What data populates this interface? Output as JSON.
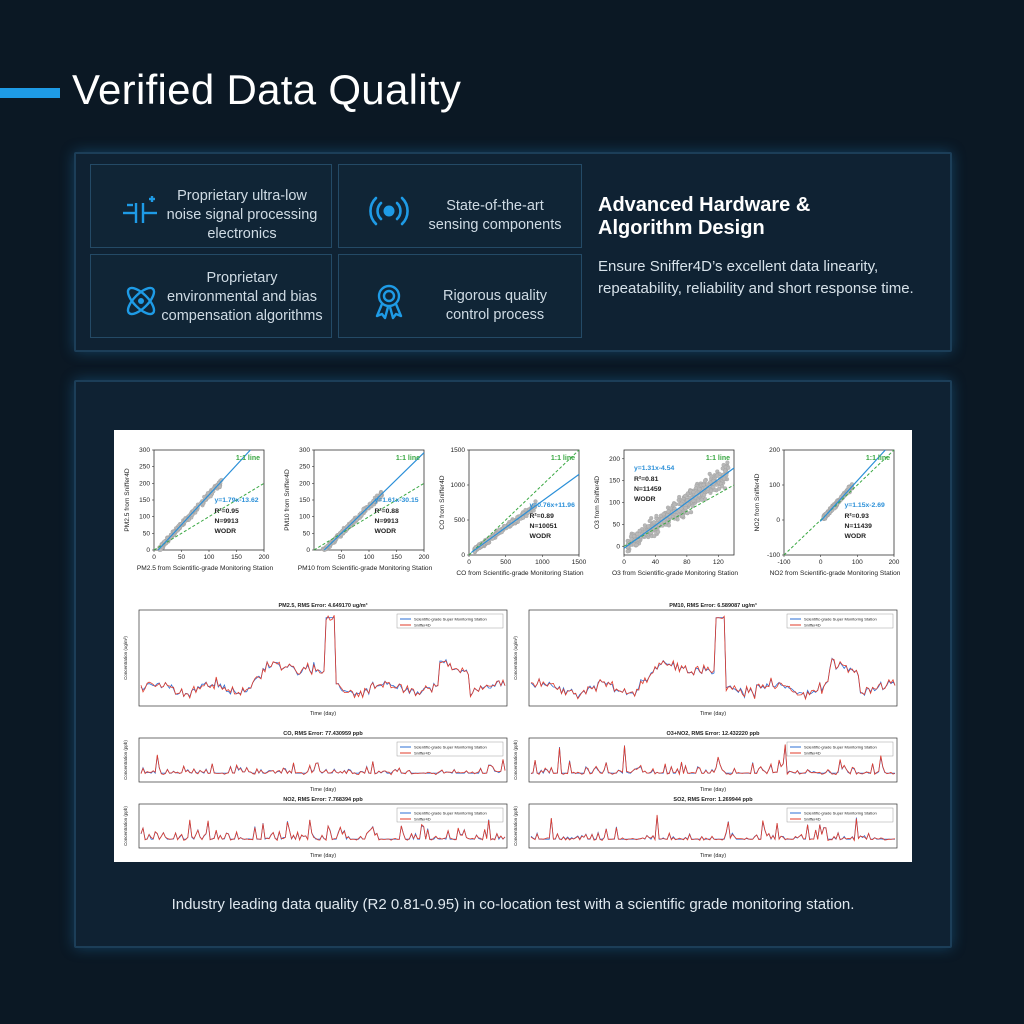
{
  "page": {
    "title": "Verified Data Quality",
    "accent": "#1e9be6",
    "background": "#0b1824"
  },
  "features": [
    {
      "icon": "capacitor-icon",
      "text": [
        "Proprietary ultra-low",
        "noise signal processing",
        "electronics"
      ]
    },
    {
      "icon": "radio-signal-icon",
      "text": [
        "State-of-the-art",
        "sensing components"
      ]
    },
    {
      "icon": "atom-icon",
      "text": [
        "Proprietary",
        "environmental and bias",
        "compensation algorithms"
      ]
    },
    {
      "icon": "award-ribbon-icon",
      "text": [
        "Rigorous quality",
        "control process"
      ]
    }
  ],
  "advanced": {
    "title_line1": "Advanced Hardware &",
    "title_line2": "Algorithm Design",
    "desc_line1": "Ensure Sniffer4D’s excellent data linearity,",
    "desc_line2": "repeatability, reliability and short response time."
  },
  "caption": "Industry leading data quality (R2 0.81-0.95) in co-location test with a scientific grade monitoring station.",
  "chart_data": [
    {
      "type": "scatter",
      "ylabel": "PM2.5 from Sniffer4D",
      "xlabel": "PM2.5 from Scientific-grade Monitoring Station",
      "xlim": [
        0,
        200
      ],
      "ylim": [
        0,
        300
      ],
      "xticks": [
        0,
        50,
        100,
        150,
        200
      ],
      "yticks": [
        0,
        50,
        100,
        150,
        200,
        250,
        300
      ],
      "one_to_one_label": "1:1 line",
      "fit": {
        "label": "y=1.79x-13.62",
        "slope": 1.79,
        "intercept": -13.62
      },
      "r2": "0.95",
      "n": "N=9913",
      "group": "WODR"
    },
    {
      "type": "scatter",
      "ylabel": "PM10 from Sniffer4D",
      "xlabel": "PM10 from Scientific-grade Monitoring Station",
      "xlim": [
        0,
        200
      ],
      "ylim": [
        0,
        300
      ],
      "xticks": [
        50,
        100,
        150,
        200
      ],
      "yticks": [
        0,
        50,
        100,
        150,
        200,
        250,
        300
      ],
      "one_to_one_label": "1:1 line",
      "fit": {
        "label": "y=1.61x-30.15",
        "slope": 1.61,
        "intercept": -30.15
      },
      "r2": "0.88",
      "n": "N=9913",
      "group": "WODR"
    },
    {
      "type": "scatter",
      "ylabel": "CO from Sniffer4D",
      "xlabel": "CO from Scientific-grade Monitoring Station",
      "xlim": [
        0,
        1500
      ],
      "ylim": [
        0,
        1500
      ],
      "xticks": [
        0,
        500,
        1000,
        1500
      ],
      "yticks": [
        0,
        500,
        1000,
        1500
      ],
      "one_to_one_label": "1:1 line",
      "fit": {
        "label": "y=0.76x+11.96",
        "slope": 0.76,
        "intercept": 11.96
      },
      "r2": "0.89",
      "n": "N=10051",
      "group": "WODR"
    },
    {
      "type": "scatter",
      "ylabel": "O3 from Sniffer4D",
      "xlabel": "O3 from Scientific-grade Monitoring Station",
      "xlim": [
        0,
        140
      ],
      "ylim": [
        -20,
        220
      ],
      "xticks": [
        0,
        40,
        80,
        120
      ],
      "yticks": [
        0,
        50,
        100,
        150,
        200
      ],
      "one_to_one_label": "1:1 line",
      "fit": {
        "label": "y=1.31x-4.54",
        "slope": 1.31,
        "intercept": -4.54
      },
      "r2": "0.81",
      "n": "N=11459",
      "group": "WODR"
    },
    {
      "type": "scatter",
      "ylabel": "NO2 from Sniffer4D",
      "xlabel": "NO2 from Scientific-grade Monitoring Station",
      "xlim": [
        -100,
        200
      ],
      "ylim": [
        -100,
        200
      ],
      "xticks": [
        -100,
        0,
        100,
        200
      ],
      "yticks": [
        -100,
        0,
        100,
        200
      ],
      "one_to_one_label": "1:1 line",
      "fit": {
        "label": "y=1.15x-2.69",
        "slope": 1.15,
        "intercept": -2.69
      },
      "r2": "0.93",
      "n": "N=11439",
      "group": "WODR"
    },
    {
      "type": "line",
      "title": "PM2.5,   RMS Error: 4.649170 ug/m³",
      "xlabel": "Time (day)",
      "ylabel": "Concentration (ug/m³)",
      "series": [
        {
          "name": "Scientific-grade Super Monitoring Station",
          "color": "#2b6fd6"
        },
        {
          "name": "Sniffer4D",
          "color": "#e03b2a"
        }
      ]
    },
    {
      "type": "line",
      "title": "PM10,   RMS Error: 6.589087 ug/m³",
      "xlabel": "Time (day)",
      "ylabel": "Concentration (ug/m³)",
      "series": [
        {
          "name": "Scientific-grade Super Monitoring Station",
          "color": "#2b6fd6"
        },
        {
          "name": "Sniffer4D",
          "color": "#e03b2a"
        }
      ]
    },
    {
      "type": "line",
      "title": "CO,   RMS Error: 77.430959 ppb",
      "xlabel": "Time (day)",
      "ylabel": "Concentration (ppb)",
      "series": [
        {
          "name": "Scientific-grade Super Monitoring Station",
          "color": "#2b6fd6"
        },
        {
          "name": "Sniffer4D",
          "color": "#e03b2a"
        }
      ]
    },
    {
      "type": "line",
      "title": "O3+NO2,   RMS Error: 12.432220 ppb",
      "xlabel": "Time (day)",
      "ylabel": "Concentration (ppb)",
      "series": [
        {
          "name": "Scientific-grade Super Monitoring Station",
          "color": "#2b6fd6"
        },
        {
          "name": "Sniffer4D",
          "color": "#e03b2a"
        }
      ]
    },
    {
      "type": "line",
      "title": "NO2,   RMS Error: 7.768394 ppb",
      "xlabel": "Time (day)",
      "ylabel": "Concentration (ppb)",
      "series": [
        {
          "name": "Scientific-grade Super Monitoring Station",
          "color": "#2b6fd6"
        },
        {
          "name": "Sniffer4D",
          "color": "#e03b2a"
        }
      ]
    },
    {
      "type": "line",
      "title": "SO2,   RMS Error: 1.269944 ppb",
      "xlabel": "Time (day)",
      "ylabel": "Concentration (ppb)",
      "series": [
        {
          "name": "Scientific-grade Super Monitoring Station",
          "color": "#2b6fd6"
        },
        {
          "name": "Sniffer4D",
          "color": "#e03b2a"
        }
      ]
    }
  ]
}
